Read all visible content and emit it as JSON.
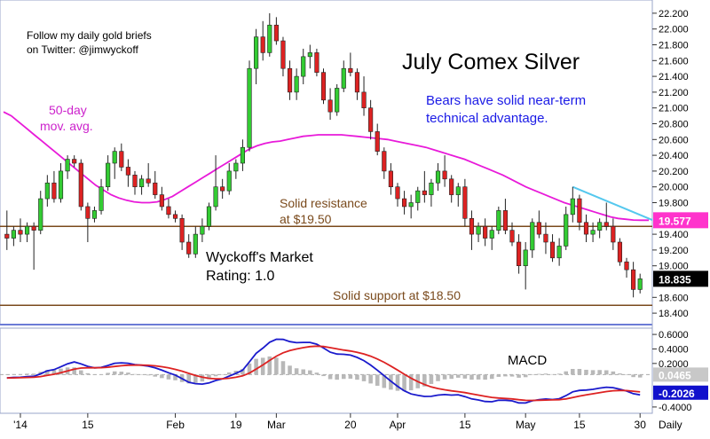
{
  "chart_data": {
    "type": "candlestick",
    "title": "July Comex Silver",
    "period_label": "Daily",
    "x_labels": [
      "'14",
      "15",
      "Feb",
      "19",
      "Mar",
      "20",
      "Apr",
      "15",
      "May",
      "15",
      "30"
    ],
    "ylim": [
      18.3,
      22.3
    ],
    "y_ticks": [
      "22.200",
      "22.000",
      "21.800",
      "21.600",
      "21.400",
      "21.200",
      "21.000",
      "20.800",
      "20.600",
      "20.400",
      "20.200",
      "20.000",
      "19.800",
      "19.400",
      "19.200",
      "19.000",
      "18.600",
      "18.400"
    ],
    "candles": [
      [
        19.4,
        19.7,
        19.2,
        19.35
      ],
      [
        19.35,
        19.5,
        19.25,
        19.45
      ],
      [
        19.45,
        19.6,
        19.3,
        19.4
      ],
      [
        19.4,
        19.55,
        19.3,
        19.5
      ],
      [
        19.5,
        19.55,
        18.95,
        19.45
      ],
      [
        19.45,
        19.95,
        19.4,
        19.85
      ],
      [
        19.85,
        20.15,
        19.75,
        20.05
      ],
      [
        20.05,
        20.2,
        19.8,
        19.85
      ],
      [
        19.85,
        20.3,
        19.8,
        20.2
      ],
      [
        20.2,
        20.4,
        20.1,
        20.35
      ],
      [
        20.35,
        20.4,
        20.25,
        20.3
      ],
      [
        20.3,
        20.35,
        19.7,
        19.75
      ],
      [
        19.75,
        19.8,
        19.3,
        19.6
      ],
      [
        19.6,
        19.75,
        19.55,
        19.7
      ],
      [
        19.7,
        20.1,
        19.65,
        20.0
      ],
      [
        20.0,
        20.4,
        19.95,
        20.3
      ],
      [
        20.3,
        20.5,
        20.1,
        20.45
      ],
      [
        20.45,
        20.55,
        20.2,
        20.25
      ],
      [
        20.25,
        20.35,
        20.0,
        20.15
      ],
      [
        20.15,
        20.2,
        19.9,
        20.0
      ],
      [
        20.0,
        20.15,
        19.9,
        20.1
      ],
      [
        20.1,
        20.3,
        20.0,
        20.05
      ],
      [
        20.05,
        20.2,
        19.85,
        19.9
      ],
      [
        19.9,
        20.0,
        19.7,
        19.75
      ],
      [
        19.75,
        19.85,
        19.6,
        19.65
      ],
      [
        19.65,
        19.7,
        19.55,
        19.6
      ],
      [
        19.6,
        19.65,
        19.2,
        19.3
      ],
      [
        19.3,
        19.4,
        19.1,
        19.15
      ],
      [
        19.15,
        19.5,
        19.1,
        19.4
      ],
      [
        19.4,
        19.6,
        19.3,
        19.5
      ],
      [
        19.5,
        19.8,
        19.45,
        19.75
      ],
      [
        19.75,
        20.4,
        19.7,
        20.0
      ],
      [
        20.0,
        20.1,
        19.85,
        19.95
      ],
      [
        19.95,
        20.3,
        19.9,
        20.2
      ],
      [
        20.2,
        20.35,
        20.1,
        20.3
      ],
      [
        20.3,
        20.6,
        20.2,
        20.5
      ],
      [
        20.5,
        21.6,
        20.45,
        21.5
      ],
      [
        21.5,
        22.0,
        21.3,
        21.9
      ],
      [
        21.9,
        22.1,
        21.6,
        21.7
      ],
      [
        21.7,
        22.2,
        21.65,
        22.05
      ],
      [
        22.05,
        22.15,
        21.8,
        21.85
      ],
      [
        21.85,
        21.9,
        21.4,
        21.5
      ],
      [
        21.5,
        21.6,
        21.1,
        21.2
      ],
      [
        21.2,
        21.5,
        21.1,
        21.4
      ],
      [
        21.4,
        21.75,
        21.3,
        21.65
      ],
      [
        21.65,
        21.8,
        21.5,
        21.7
      ],
      [
        21.7,
        21.75,
        21.4,
        21.45
      ],
      [
        21.45,
        21.5,
        21.05,
        21.1
      ],
      [
        21.1,
        21.25,
        20.85,
        20.95
      ],
      [
        20.95,
        21.3,
        20.9,
        21.25
      ],
      [
        21.25,
        21.6,
        21.2,
        21.5
      ],
      [
        21.5,
        21.7,
        21.4,
        21.45
      ],
      [
        21.45,
        21.5,
        21.1,
        21.2
      ],
      [
        21.2,
        21.4,
        20.9,
        21.0
      ],
      [
        21.0,
        21.1,
        20.6,
        20.7
      ],
      [
        20.7,
        20.8,
        20.4,
        20.45
      ],
      [
        20.45,
        20.5,
        20.1,
        20.2
      ],
      [
        20.2,
        20.3,
        19.9,
        20.0
      ],
      [
        20.0,
        20.05,
        19.75,
        19.85
      ],
      [
        19.85,
        19.95,
        19.65,
        19.75
      ],
      [
        19.75,
        19.9,
        19.6,
        19.8
      ],
      [
        19.8,
        20.0,
        19.7,
        19.95
      ],
      [
        19.95,
        20.2,
        19.8,
        19.9
      ],
      [
        19.9,
        20.1,
        19.75,
        20.05
      ],
      [
        20.05,
        20.3,
        19.95,
        20.2
      ],
      [
        20.2,
        20.4,
        20.0,
        20.1
      ],
      [
        20.1,
        20.15,
        19.8,
        19.9
      ],
      [
        19.9,
        20.05,
        19.75,
        20.0
      ],
      [
        20.0,
        20.1,
        19.5,
        19.6
      ],
      [
        19.6,
        19.7,
        19.2,
        19.4
      ],
      [
        19.4,
        19.55,
        19.3,
        19.5
      ],
      [
        19.5,
        19.6,
        19.25,
        19.35
      ],
      [
        19.35,
        19.5,
        19.2,
        19.45
      ],
      [
        19.45,
        19.75,
        19.4,
        19.7
      ],
      [
        19.7,
        19.85,
        19.4,
        19.45
      ],
      [
        19.45,
        19.55,
        19.25,
        19.3
      ],
      [
        19.3,
        19.4,
        18.9,
        19.0
      ],
      [
        19.0,
        19.3,
        18.7,
        19.2
      ],
      [
        19.2,
        19.6,
        19.1,
        19.55
      ],
      [
        19.55,
        19.7,
        19.35,
        19.4
      ],
      [
        19.4,
        19.55,
        19.15,
        19.3
      ],
      [
        19.3,
        19.4,
        19.05,
        19.1
      ],
      [
        19.1,
        19.35,
        19.0,
        19.25
      ],
      [
        19.25,
        19.75,
        19.2,
        19.65
      ],
      [
        19.65,
        20.0,
        19.55,
        19.85
      ],
      [
        19.85,
        19.9,
        19.45,
        19.55
      ],
      [
        19.55,
        19.65,
        19.3,
        19.4
      ],
      [
        19.4,
        19.55,
        19.3,
        19.45
      ],
      [
        19.45,
        19.6,
        19.35,
        19.55
      ],
      [
        19.55,
        19.8,
        19.45,
        19.5
      ],
      [
        19.5,
        19.6,
        19.2,
        19.3
      ],
      [
        19.3,
        19.35,
        19.0,
        19.05
      ],
      [
        19.05,
        19.1,
        18.85,
        18.95
      ],
      [
        18.95,
        19.05,
        18.6,
        18.7
      ],
      [
        18.7,
        18.9,
        18.65,
        18.835
      ]
    ],
    "series": [
      {
        "name": "50-day mov. avg.",
        "color": "#e81ad9",
        "values": [
          20.95,
          20.9,
          20.82,
          20.74,
          20.66,
          20.58,
          20.5,
          20.42,
          20.34,
          20.26,
          20.18,
          20.1,
          20.02,
          19.96,
          19.9,
          19.86,
          19.83,
          19.81,
          19.8,
          19.8,
          19.81,
          19.84,
          19.88,
          19.94,
          20.0,
          20.06,
          20.12,
          20.18,
          20.24,
          20.3,
          20.36,
          20.42,
          20.48,
          20.52,
          20.55,
          20.57,
          20.58,
          20.6,
          20.62,
          20.64,
          20.65,
          20.66,
          20.66,
          20.66,
          20.66,
          20.65,
          20.64,
          20.63,
          20.62,
          20.61,
          20.6,
          20.58,
          20.56,
          20.54,
          20.52,
          20.5,
          20.47,
          20.44,
          20.41,
          20.38,
          20.35,
          20.31,
          20.27,
          20.23,
          20.19,
          20.15,
          20.1,
          20.05,
          20.0,
          19.96,
          19.92,
          19.88,
          19.84,
          19.8,
          19.77,
          19.74,
          19.71,
          19.68,
          19.65,
          19.62,
          19.6,
          19.59,
          19.58,
          19.578,
          19.577
        ]
      }
    ],
    "hlines": [
      {
        "label": "Solid resistance at $19.50",
        "value": 19.5,
        "color": "#7a4a1c"
      },
      {
        "label": "Solid support at $18.50",
        "value": 18.5,
        "color": "#7a4a1c"
      }
    ],
    "price_tags": [
      {
        "value": 19.577,
        "text": "19.577",
        "bg": "#ff33cc",
        "fg": "#ffffff"
      },
      {
        "value": 18.835,
        "text": "18.835",
        "bg": "#000000",
        "fg": "#ffffff"
      }
    ],
    "macd": {
      "title": "MACD",
      "ylim": [
        -0.45,
        0.65
      ],
      "y_ticks": [
        "0.6000",
        "0.4000",
        "0.2000",
        "-0.4000"
      ],
      "tags": [
        {
          "value": 0.0465,
          "text": "0.0465",
          "bg": "#c8c8c8",
          "fg": "#ffffff"
        },
        {
          "value": -0.2026,
          "text": "-0.2026",
          "bg": "#1010cc",
          "fg": "#ffffff"
        }
      ]
    }
  },
  "annotations": {
    "twitter": "Follow my daily gold briefs",
    "twitter2": "on Twitter:   @jimwyckoff",
    "ma_label1": "50-day",
    "ma_label2": "mov. avg.",
    "bears1": "Bears have solid near-term",
    "bears2": "technical advantage.",
    "resistance1": "Solid resistance",
    "resistance2": "at $19.50",
    "wyckoff1": "Wyckoff's Market",
    "wyckoff2": "Rating: 1.0",
    "support": "Solid support at $18.50"
  }
}
